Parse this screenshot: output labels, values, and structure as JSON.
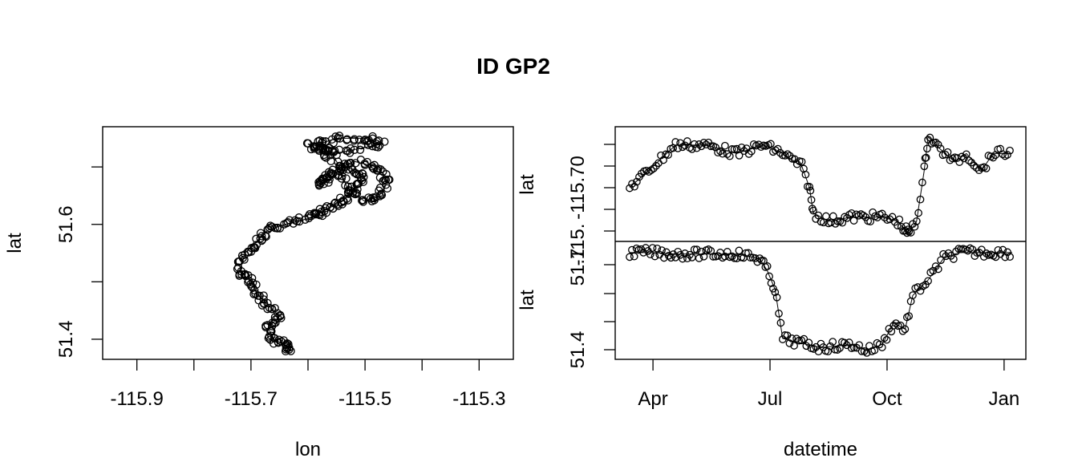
{
  "title": "ID GP2",
  "chart_data": [
    {
      "type": "scatter",
      "xlabel": "lon",
      "ylabel": "lat",
      "xlim": [
        -115.96,
        -115.24
      ],
      "ylim": [
        51.365,
        51.77
      ],
      "xticks": [
        -115.9,
        -115.8,
        -115.7,
        -115.6,
        -115.5,
        -115.4,
        -115.3
      ],
      "xtick_labels": [
        "-115.9",
        "",
        "-115.7",
        "",
        "-115.5",
        "",
        "-115.3"
      ],
      "yticks": [
        51.4,
        51.5,
        51.6,
        51.7
      ],
      "ytick_labels": [
        "51.4",
        "",
        "51.6",
        ""
      ],
      "lines_connecting_points": true,
      "track": [
        [
          -115.63,
          51.38
        ],
        [
          -115.64,
          51.39
        ],
        [
          -115.66,
          51.4
        ],
        [
          -115.67,
          51.42
        ],
        [
          -115.65,
          51.44
        ],
        [
          -115.67,
          51.46
        ],
        [
          -115.69,
          51.48
        ],
        [
          -115.7,
          51.5
        ],
        [
          -115.72,
          51.52
        ],
        [
          -115.71,
          51.55
        ],
        [
          -115.69,
          51.57
        ],
        [
          -115.67,
          51.59
        ],
        [
          -115.64,
          51.6
        ],
        [
          -115.6,
          51.61
        ],
        [
          -115.58,
          51.62
        ],
        [
          -115.56,
          51.63
        ],
        [
          -115.54,
          51.64
        ],
        [
          -115.52,
          51.66
        ],
        [
          -115.5,
          51.68
        ],
        [
          -115.53,
          51.7
        ],
        [
          -115.56,
          51.68
        ],
        [
          -115.58,
          51.67
        ],
        [
          -115.56,
          51.69
        ],
        [
          -115.52,
          51.71
        ],
        [
          -115.48,
          51.7
        ],
        [
          -115.46,
          51.68
        ],
        [
          -115.47,
          51.65
        ],
        [
          -115.5,
          51.64
        ],
        [
          -115.53,
          51.66
        ],
        [
          -115.55,
          51.71
        ],
        [
          -115.58,
          51.74
        ],
        [
          -115.55,
          51.75
        ],
        [
          -115.5,
          51.75
        ],
        [
          -115.47,
          51.74
        ],
        [
          -115.52,
          51.73
        ],
        [
          -115.57,
          51.72
        ],
        [
          -115.6,
          51.74
        ],
        [
          -115.55,
          51.73
        ]
      ]
    },
    {
      "type": "line",
      "xlabel": "datetime",
      "x_tick_labels": [
        "Apr",
        "Jul",
        "Oct",
        "Jan"
      ],
      "panels": [
        {
          "ylabel": "lat",
          "ytick_labels": [
            "",
            "",
            "",
            "-115.70",
            "-115."
          ],
          "note": "upper panel: longitude over time (tick labels overlap)"
        },
        {
          "ylabel": "lat",
          "ytick_labels": [
            "51.4",
            "",
            "51.7"
          ],
          "note": "lower panel: latitude over time"
        }
      ],
      "upper_series": [
        [
          0,
          -115.7
        ],
        [
          0.05,
          -115.66
        ],
        [
          0.12,
          -115.6
        ],
        [
          0.2,
          -115.6
        ],
        [
          0.28,
          -115.62
        ],
        [
          0.35,
          -115.6
        ],
        [
          0.4,
          -115.62
        ],
        [
          0.45,
          -115.65
        ],
        [
          0.47,
          -115.7
        ],
        [
          0.48,
          -115.76
        ],
        [
          0.52,
          -115.78
        ],
        [
          0.58,
          -115.77
        ],
        [
          0.66,
          -115.77
        ],
        [
          0.7,
          -115.78
        ],
        [
          0.72,
          -115.8
        ],
        [
          0.73,
          -115.81
        ],
        [
          0.75,
          -115.78
        ],
        [
          0.77,
          -115.66
        ],
        [
          0.78,
          -115.58
        ],
        [
          0.8,
          -115.6
        ],
        [
          0.85,
          -115.64
        ],
        [
          0.88,
          -115.62
        ],
        [
          0.92,
          -115.66
        ],
        [
          0.95,
          -115.62
        ],
        [
          1.0,
          -115.62
        ]
      ],
      "lower_series": [
        [
          0,
          51.72
        ],
        [
          0.06,
          51.72
        ],
        [
          0.12,
          51.715
        ],
        [
          0.2,
          51.715
        ],
        [
          0.28,
          51.715
        ],
        [
          0.34,
          51.7
        ],
        [
          0.36,
          51.66
        ],
        [
          0.38,
          51.6
        ],
        [
          0.4,
          51.44
        ],
        [
          0.43,
          51.43
        ],
        [
          0.5,
          51.41
        ],
        [
          0.58,
          51.42
        ],
        [
          0.62,
          51.4
        ],
        [
          0.66,
          51.42
        ],
        [
          0.69,
          51.49
        ],
        [
          0.72,
          51.47
        ],
        [
          0.74,
          51.58
        ],
        [
          0.78,
          51.63
        ],
        [
          0.82,
          51.7
        ],
        [
          0.86,
          51.72
        ],
        [
          0.92,
          51.72
        ],
        [
          1.0,
          51.72
        ]
      ]
    }
  ]
}
